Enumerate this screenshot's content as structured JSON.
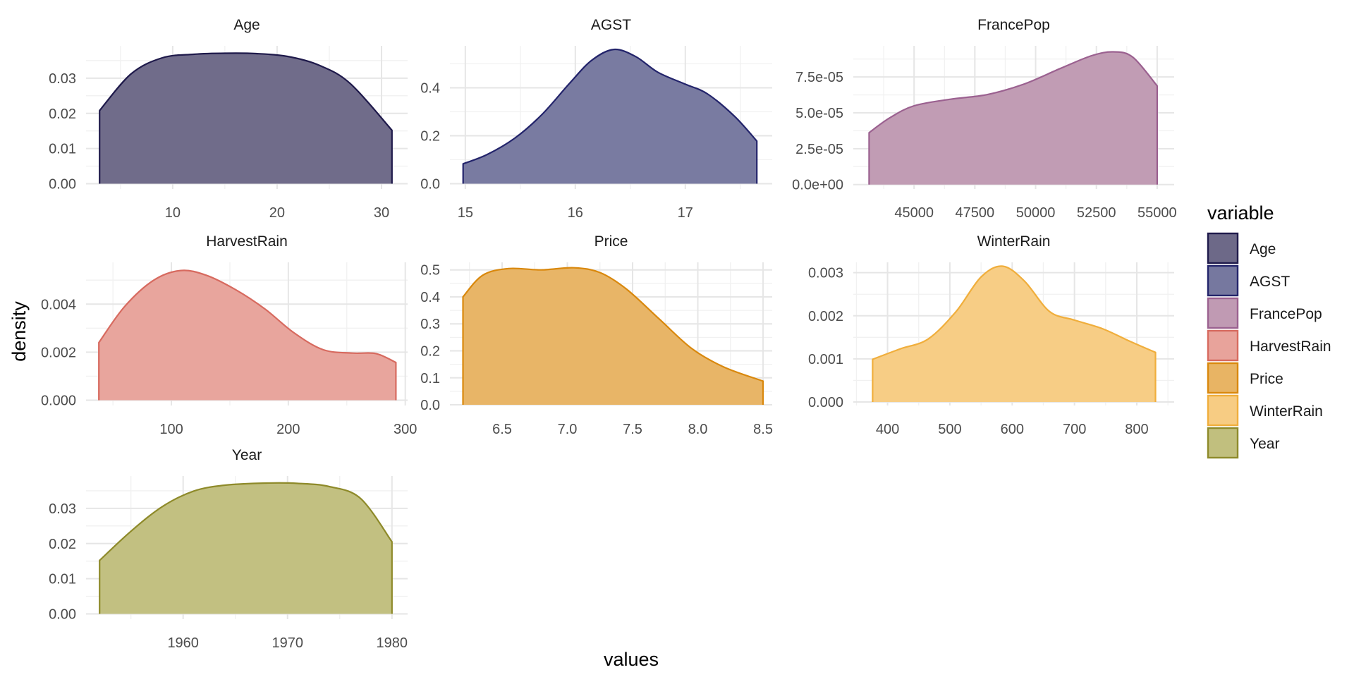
{
  "chart_data": {
    "type": "area",
    "xlabel": "values",
    "ylabel": "density",
    "legend": {
      "title": "variable",
      "placement": "right"
    },
    "grid": true,
    "facets": [
      {
        "name": "Age",
        "color": "#1f1a4b",
        "fill": "#6d6988",
        "xlim": [
          1.7,
          32.5
        ],
        "ylim": [
          -0.0015,
          0.0392
        ],
        "xticks": [
          10,
          20,
          30
        ],
        "xtick_labels": [
          "10",
          "20",
          "30"
        ],
        "yticks": [
          0,
          0.01,
          0.02,
          0.03
        ],
        "ytick_labels": [
          "0.00",
          "0.01",
          "0.02",
          "0.03"
        ],
        "points": [
          [
            3,
            0.0208
          ],
          [
            6,
            0.0312
          ],
          [
            9,
            0.0358
          ],
          [
            12,
            0.0368
          ],
          [
            15,
            0.0371
          ],
          [
            18,
            0.037
          ],
          [
            21,
            0.0362
          ],
          [
            24,
            0.0337
          ],
          [
            27,
            0.0285
          ],
          [
            31,
            0.0152
          ]
        ]
      },
      {
        "name": "AGST",
        "color": "#23246b",
        "fill": "#76789f",
        "xlim": [
          14.86,
          17.79
        ],
        "ylim": [
          -0.022,
          0.575
        ],
        "xticks": [
          15,
          16,
          17
        ],
        "xtick_labels": [
          "15",
          "16",
          "17"
        ],
        "yticks": [
          0,
          0.2,
          0.4
        ],
        "ytick_labels": [
          "0.0",
          "0.2",
          "0.4"
        ],
        "points": [
          [
            14.98,
            0.083
          ],
          [
            15.2,
            0.122
          ],
          [
            15.45,
            0.19
          ],
          [
            15.7,
            0.29
          ],
          [
            15.95,
            0.42
          ],
          [
            16.15,
            0.515
          ],
          [
            16.35,
            0.56
          ],
          [
            16.55,
            0.53
          ],
          [
            16.75,
            0.465
          ],
          [
            17.0,
            0.415
          ],
          [
            17.2,
            0.375
          ],
          [
            17.45,
            0.28
          ],
          [
            17.65,
            0.178
          ]
        ]
      },
      {
        "name": "FrancePop",
        "color": "#9b6190",
        "fill": "#c09ab3",
        "xlim": [
          42500,
          55700
        ],
        "ylim": [
          -3.1e-06,
          9.67e-05
        ],
        "xticks": [
          45000,
          47500,
          50000,
          52500,
          55000
        ],
        "xtick_labels": [
          "45000",
          "47500",
          "50000",
          "52500",
          "55000"
        ],
        "yticks": [
          0,
          2.5e-05,
          5e-05,
          7.5e-05
        ],
        "ytick_labels": [
          "0.0e+00",
          "2.5e-05",
          "5.0e-05",
          "7.5e-05"
        ],
        "points": [
          [
            43150,
            3.62e-05
          ],
          [
            44000,
            4.65e-05
          ],
          [
            45000,
            5.49e-05
          ],
          [
            46500,
            5.95e-05
          ],
          [
            48000,
            6.27e-05
          ],
          [
            49500,
            6.99e-05
          ],
          [
            51000,
            8.08e-05
          ],
          [
            52300,
            8.98e-05
          ],
          [
            53200,
            9.25e-05
          ],
          [
            54000,
            8.88e-05
          ],
          [
            55000,
            6.88e-05
          ]
        ]
      },
      {
        "name": "HarvestRain",
        "color": "#d76a5f",
        "fill": "#e8a39b",
        "xlim": [
          27,
          302
        ],
        "ylim": [
          -0.00022,
          0.00574
        ],
        "xticks": [
          100,
          200,
          300
        ],
        "xtick_labels": [
          "100",
          "200",
          "300"
        ],
        "yticks": [
          0,
          0.002,
          0.004
        ],
        "ytick_labels": [
          "0.000",
          "0.002",
          "0.004"
        ],
        "points": [
          [
            38,
            0.0024
          ],
          [
            60,
            0.0039
          ],
          [
            85,
            0.005
          ],
          [
            108,
            0.0054
          ],
          [
            130,
            0.0052
          ],
          [
            155,
            0.0046
          ],
          [
            180,
            0.0038
          ],
          [
            205,
            0.0028
          ],
          [
            230,
            0.0021
          ],
          [
            255,
            0.00196
          ],
          [
            275,
            0.00194
          ],
          [
            292,
            0.00157
          ]
        ]
      },
      {
        "name": "Price",
        "color": "#d9880d",
        "fill": "#e8b464",
        "xlim": [
          6.1,
          8.57
        ],
        "ylim": [
          -0.0025,
          0.528
        ],
        "xticks": [
          6.5,
          7.0,
          7.5,
          8.0,
          8.5
        ],
        "xtick_labels": [
          "6.5",
          "7.0",
          "7.5",
          "8.0",
          "8.5"
        ],
        "yticks": [
          0,
          0.1,
          0.2,
          0.3,
          0.4,
          0.5
        ],
        "ytick_labels": [
          "0.0",
          "0.1",
          "0.2",
          "0.3",
          "0.4",
          "0.5"
        ],
        "points": [
          [
            6.2,
            0.4
          ],
          [
            6.35,
            0.48
          ],
          [
            6.55,
            0.505
          ],
          [
            6.8,
            0.5
          ],
          [
            7.05,
            0.508
          ],
          [
            7.25,
            0.49
          ],
          [
            7.45,
            0.43
          ],
          [
            7.7,
            0.32
          ],
          [
            7.95,
            0.21
          ],
          [
            8.2,
            0.14
          ],
          [
            8.5,
            0.088
          ]
        ]
      },
      {
        "name": "WinterRain",
        "color": "#f0ae3c",
        "fill": "#f7cc83",
        "xlim": [
          345,
          860
        ],
        "ylim": [
          -8.2e-05,
          0.00324
        ],
        "xticks": [
          400,
          500,
          600,
          700,
          800
        ],
        "xtick_labels": [
          "400",
          "500",
          "600",
          "700",
          "800"
        ],
        "yticks": [
          0,
          0.001,
          0.002,
          0.003
        ],
        "ytick_labels": [
          "0.000",
          "0.001",
          "0.002",
          "0.003"
        ],
        "points": [
          [
            376,
            0.00099
          ],
          [
            420,
            0.00123
          ],
          [
            465,
            0.00146
          ],
          [
            510,
            0.0021
          ],
          [
            550,
            0.0029
          ],
          [
            585,
            0.00315
          ],
          [
            620,
            0.0028
          ],
          [
            660,
            0.0021
          ],
          [
            700,
            0.0019
          ],
          [
            745,
            0.0017
          ],
          [
            790,
            0.0014
          ],
          [
            830,
            0.00115
          ]
        ]
      },
      {
        "name": "Year",
        "color": "#8e8a2a",
        "fill": "#c1bf7e",
        "xlim": [
          1950.7,
          1981.5
        ],
        "ylim": [
          -0.0015,
          0.0392
        ],
        "xticks": [
          1960,
          1970,
          1980
        ],
        "xtick_labels": [
          "1960",
          "1970",
          "1980"
        ],
        "yticks": [
          0,
          0.01,
          0.02,
          0.03
        ],
        "ytick_labels": [
          "0.00",
          "0.01",
          "0.02",
          "0.03"
        ],
        "points": [
          [
            1952,
            0.0152
          ],
          [
            1955,
            0.0235
          ],
          [
            1958,
            0.0305
          ],
          [
            1961,
            0.0349
          ],
          [
            1964,
            0.0366
          ],
          [
            1968,
            0.0372
          ],
          [
            1971,
            0.0371
          ],
          [
            1974,
            0.0362
          ],
          [
            1977,
            0.0328
          ],
          [
            1980,
            0.0205
          ]
        ]
      }
    ]
  }
}
